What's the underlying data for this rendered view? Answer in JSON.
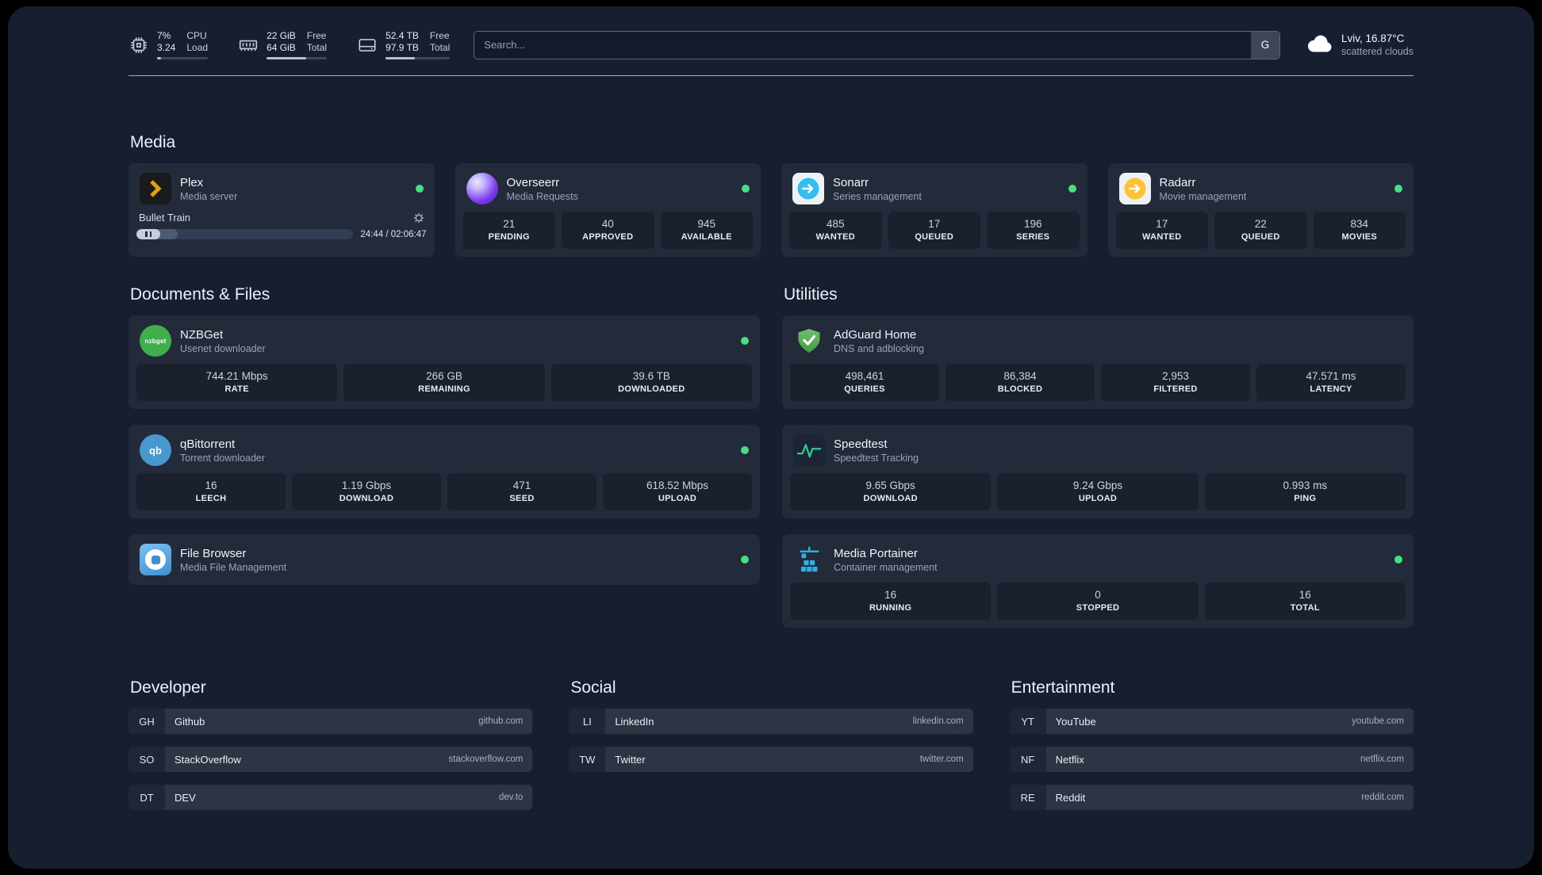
{
  "topbar": {
    "resources": [
      {
        "id": "cpu",
        "values": [
          "7%",
          "3.24"
        ],
        "labels": [
          "CPU",
          "Load"
        ],
        "progress_pct": 8
      },
      {
        "id": "memory",
        "values": [
          "22 GiB",
          "64 GiB"
        ],
        "labels": [
          "Free",
          "Total"
        ],
        "progress_pct": 66
      },
      {
        "id": "disk",
        "values": [
          "52.4 TB",
          "97.9 TB"
        ],
        "labels": [
          "Free",
          "Total"
        ],
        "progress_pct": 46
      }
    ],
    "search": {
      "placeholder": "Search...",
      "provider_button": "G"
    },
    "weather": {
      "location_temp": "Lviv, 16.87°C",
      "condition": "scattered clouds"
    }
  },
  "sections": {
    "media": {
      "title": "Media"
    },
    "documents": {
      "title": "Documents & Files"
    },
    "utilities": {
      "title": "Utilities"
    }
  },
  "apps": {
    "plex": {
      "name": "Plex",
      "desc": "Media server",
      "status_dot": true,
      "player": {
        "title": "Bullet Train",
        "time": "24:44 / 02:06:47",
        "progress_pct": 19
      }
    },
    "overseerr": {
      "name": "Overseerr",
      "desc": "Media Requests",
      "status_dot": true,
      "stats": [
        {
          "value": "21",
          "label": "PENDING"
        },
        {
          "value": "40",
          "label": "APPROVED"
        },
        {
          "value": "945",
          "label": "AVAILABLE"
        }
      ]
    },
    "sonarr": {
      "name": "Sonarr",
      "desc": "Series management",
      "status_dot": true,
      "stats": [
        {
          "value": "485",
          "label": "WANTED"
        },
        {
          "value": "17",
          "label": "QUEUED"
        },
        {
          "value": "196",
          "label": "SERIES"
        }
      ]
    },
    "radarr": {
      "name": "Radarr",
      "desc": "Movie management",
      "status_dot": true,
      "stats": [
        {
          "value": "17",
          "label": "WANTED"
        },
        {
          "value": "22",
          "label": "QUEUED"
        },
        {
          "value": "834",
          "label": "MOVIES"
        }
      ]
    },
    "nzbget": {
      "name": "NZBGet",
      "desc": "Usenet downloader",
      "icon_text": "nzbget",
      "status_dot": true,
      "stats": [
        {
          "value": "744.21 Mbps",
          "label": "RATE"
        },
        {
          "value": "266 GB",
          "label": "REMAINING"
        },
        {
          "value": "39.6 TB",
          "label": "DOWNLOADED"
        }
      ]
    },
    "qbittorrent": {
      "name": "qBittorrent",
      "desc": "Torrent downloader",
      "icon_text": "qb",
      "status_dot": true,
      "stats": [
        {
          "value": "16",
          "label": "LEECH"
        },
        {
          "value": "1.19 Gbps",
          "label": "DOWNLOAD"
        },
        {
          "value": "471",
          "label": "SEED"
        },
        {
          "value": "618.52 Mbps",
          "label": "UPLOAD"
        }
      ]
    },
    "filebrowser": {
      "name": "File Browser",
      "desc": "Media File Management",
      "status_dot": true
    },
    "adguard": {
      "name": "AdGuard Home",
      "desc": "DNS and adblocking",
      "status_dot": false,
      "stats": [
        {
          "value": "498,461",
          "label": "QUERIES"
        },
        {
          "value": "86,384",
          "label": "BLOCKED"
        },
        {
          "value": "2,953",
          "label": "FILTERED"
        },
        {
          "value": "47.571 ms",
          "label": "LATENCY"
        }
      ]
    },
    "speedtest": {
      "name": "Speedtest",
      "desc": "Speedtest Tracking",
      "status_dot": false,
      "stats": [
        {
          "value": "9.65 Gbps",
          "label": "DOWNLOAD"
        },
        {
          "value": "9.24 Gbps",
          "label": "UPLOAD"
        },
        {
          "value": "0.993 ms",
          "label": "PING"
        }
      ]
    },
    "portainer": {
      "name": "Media Portainer",
      "desc": "Container management",
      "status_dot": true,
      "stats": [
        {
          "value": "16",
          "label": "RUNNING"
        },
        {
          "value": "0",
          "label": "STOPPED"
        },
        {
          "value": "16",
          "label": "TOTAL"
        }
      ]
    }
  },
  "bookmarks": {
    "developer": {
      "title": "Developer",
      "items": [
        {
          "abbr": "GH",
          "name": "Github",
          "url": "github.com"
        },
        {
          "abbr": "SO",
          "name": "StackOverflow",
          "url": "stackoverflow.com"
        },
        {
          "abbr": "DT",
          "name": "DEV",
          "url": "dev.to"
        }
      ]
    },
    "social": {
      "title": "Social",
      "items": [
        {
          "abbr": "LI",
          "name": "LinkedIn",
          "url": "linkedin.com"
        },
        {
          "abbr": "TW",
          "name": "Twitter",
          "url": "twitter.com"
        }
      ]
    },
    "entertainment": {
      "title": "Entertainment",
      "items": [
        {
          "abbr": "YT",
          "name": "YouTube",
          "url": "youtube.com"
        },
        {
          "abbr": "NF",
          "name": "Netflix",
          "url": "netflix.com"
        },
        {
          "abbr": "RE",
          "name": "Reddit",
          "url": "reddit.com"
        }
      ]
    }
  },
  "colors": {
    "background": "#171e2f",
    "card": "#232b3c",
    "status_online": "#4ade80",
    "plex_accent": "#e5a00d",
    "sonarr_accent": "#33bef0",
    "radarr_accent": "#ffc230",
    "adguard_accent": "#5cb85c",
    "speedtest_accent": "#2fd490",
    "portainer_accent": "#2bb3e8",
    "nzbget_accent": "#3faf4b",
    "qbittorrent_accent": "#4798ce"
  }
}
